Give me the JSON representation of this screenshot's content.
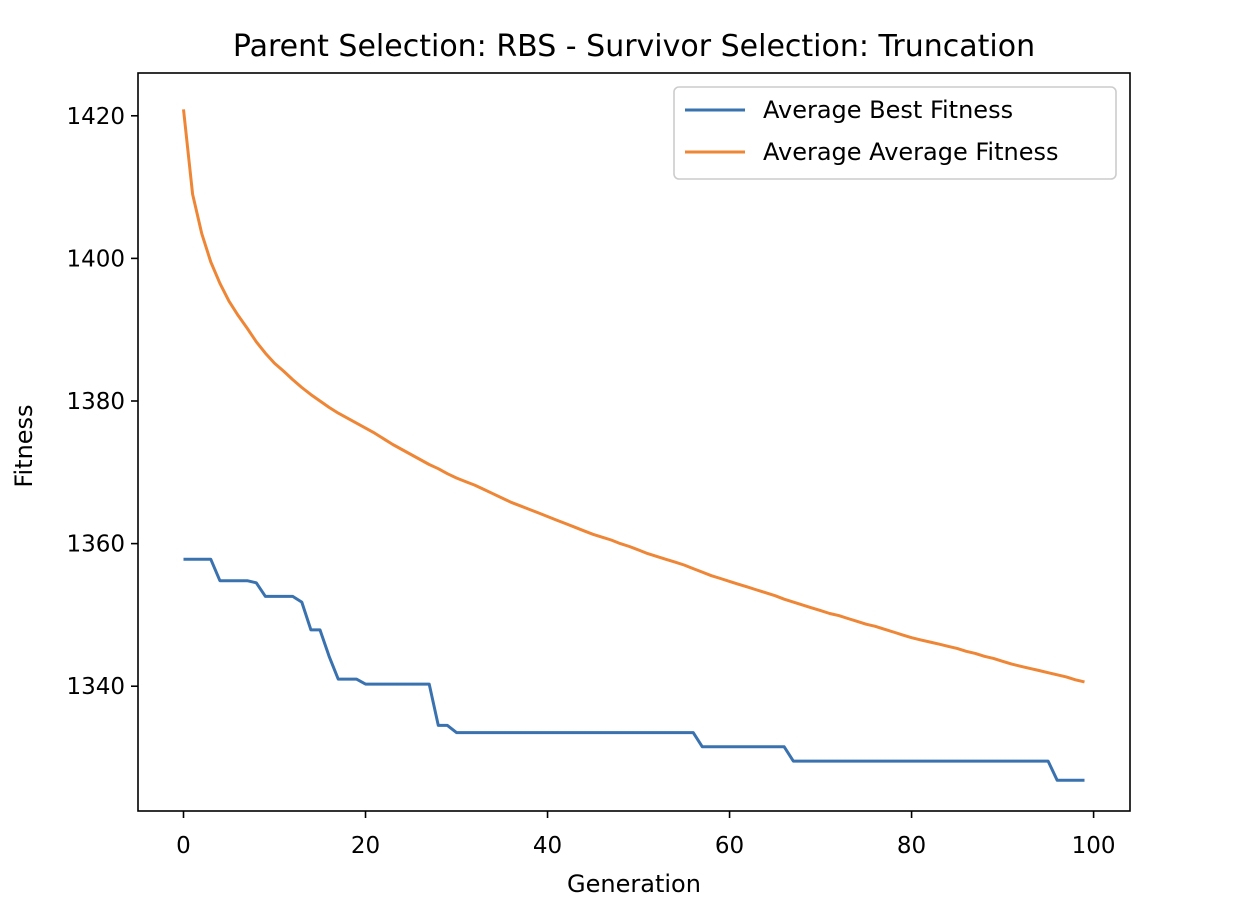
{
  "chart_data": {
    "type": "line",
    "title": "Parent Selection: RBS - Survivor Selection: Truncation",
    "xlabel": "Generation",
    "ylabel": "Fitness",
    "xlim": [
      -5,
      104
    ],
    "ylim": [
      1322.5,
      1426
    ],
    "xticks": [
      0,
      20,
      40,
      60,
      80,
      100
    ],
    "yticks": [
      1340,
      1360,
      1380,
      1400,
      1420
    ],
    "grid": false,
    "legend_position": "top-right",
    "series": [
      {
        "name": "Average Best Fitness",
        "color": "#3a72af",
        "x": [
          0,
          1,
          2,
          3,
          4,
          5,
          6,
          7,
          8,
          9,
          10,
          11,
          12,
          13,
          14,
          15,
          16,
          17,
          18,
          19,
          20,
          21,
          22,
          23,
          24,
          25,
          26,
          27,
          28,
          29,
          30,
          31,
          32,
          33,
          34,
          35,
          36,
          37,
          38,
          39,
          40,
          41,
          42,
          43,
          44,
          45,
          46,
          47,
          48,
          49,
          50,
          51,
          52,
          53,
          54,
          55,
          56,
          57,
          58,
          59,
          60,
          61,
          62,
          63,
          64,
          65,
          66,
          67,
          68,
          69,
          70,
          71,
          72,
          73,
          74,
          75,
          76,
          77,
          78,
          79,
          80,
          81,
          82,
          83,
          84,
          85,
          86,
          87,
          88,
          89,
          90,
          91,
          92,
          93,
          94,
          95,
          96,
          97,
          98,
          99
        ],
        "values": [
          1357.8,
          1357.8,
          1357.8,
          1357.8,
          1354.8,
          1354.8,
          1354.8,
          1354.8,
          1354.5,
          1352.6,
          1352.6,
          1352.6,
          1352.6,
          1351.8,
          1347.9,
          1347.9,
          1344.2,
          1341.0,
          1341.0,
          1341.0,
          1340.3,
          1340.3,
          1340.3,
          1340.3,
          1340.3,
          1340.3,
          1340.3,
          1340.3,
          1334.5,
          1334.5,
          1333.5,
          1333.5,
          1333.5,
          1333.5,
          1333.5,
          1333.5,
          1333.5,
          1333.5,
          1333.5,
          1333.5,
          1333.5,
          1333.5,
          1333.5,
          1333.5,
          1333.5,
          1333.5,
          1333.5,
          1333.5,
          1333.5,
          1333.5,
          1333.5,
          1333.5,
          1333.5,
          1333.5,
          1333.5,
          1333.5,
          1333.5,
          1331.5,
          1331.5,
          1331.5,
          1331.5,
          1331.5,
          1331.5,
          1331.5,
          1331.5,
          1331.5,
          1331.5,
          1329.5,
          1329.5,
          1329.5,
          1329.5,
          1329.5,
          1329.5,
          1329.5,
          1329.5,
          1329.5,
          1329.5,
          1329.5,
          1329.5,
          1329.5,
          1329.5,
          1329.5,
          1329.5,
          1329.5,
          1329.5,
          1329.5,
          1329.5,
          1329.5,
          1329.5,
          1329.5,
          1329.5,
          1329.5,
          1329.5,
          1329.5,
          1329.5,
          1329.5,
          1326.8,
          1326.8,
          1326.8,
          1326.8
        ]
      },
      {
        "name": "Average Average Fitness",
        "color": "#ee8636",
        "x": [
          0,
          1,
          2,
          3,
          4,
          5,
          6,
          7,
          8,
          9,
          10,
          11,
          12,
          13,
          14,
          15,
          16,
          17,
          18,
          19,
          20,
          21,
          22,
          23,
          24,
          25,
          26,
          27,
          28,
          29,
          30,
          31,
          32,
          33,
          34,
          35,
          36,
          37,
          38,
          39,
          40,
          41,
          42,
          43,
          44,
          45,
          46,
          47,
          48,
          49,
          50,
          51,
          52,
          53,
          54,
          55,
          56,
          57,
          58,
          59,
          60,
          61,
          62,
          63,
          64,
          65,
          66,
          67,
          68,
          69,
          70,
          71,
          72,
          73,
          74,
          75,
          76,
          77,
          78,
          79,
          80,
          81,
          82,
          83,
          84,
          85,
          86,
          87,
          88,
          89,
          90,
          91,
          92,
          93,
          94,
          95,
          96,
          97,
          98,
          99
        ],
        "values": [
          1420.9,
          1409.0,
          1403.5,
          1399.5,
          1396.5,
          1394.0,
          1392.0,
          1390.2,
          1388.3,
          1386.7,
          1385.3,
          1384.2,
          1383.0,
          1381.9,
          1380.9,
          1380.0,
          1379.1,
          1378.3,
          1377.6,
          1376.9,
          1376.2,
          1375.5,
          1374.7,
          1373.9,
          1373.2,
          1372.5,
          1371.8,
          1371.1,
          1370.5,
          1369.8,
          1369.2,
          1368.7,
          1368.2,
          1367.6,
          1367.0,
          1366.4,
          1365.8,
          1365.3,
          1364.8,
          1364.3,
          1363.8,
          1363.3,
          1362.8,
          1362.3,
          1361.8,
          1361.3,
          1360.9,
          1360.5,
          1360.0,
          1359.6,
          1359.1,
          1358.6,
          1358.2,
          1357.8,
          1357.4,
          1357.0,
          1356.5,
          1356.0,
          1355.5,
          1355.1,
          1354.7,
          1354.3,
          1353.9,
          1353.5,
          1353.1,
          1352.7,
          1352.2,
          1351.8,
          1351.4,
          1351.0,
          1350.6,
          1350.2,
          1349.9,
          1349.5,
          1349.1,
          1348.7,
          1348.4,
          1348.0,
          1347.6,
          1347.2,
          1346.8,
          1346.5,
          1346.2,
          1345.9,
          1345.6,
          1345.3,
          1344.9,
          1344.6,
          1344.2,
          1343.9,
          1343.5,
          1343.1,
          1342.8,
          1342.5,
          1342.2,
          1341.9,
          1341.6,
          1341.3,
          1340.9,
          1340.6
        ]
      }
    ]
  }
}
